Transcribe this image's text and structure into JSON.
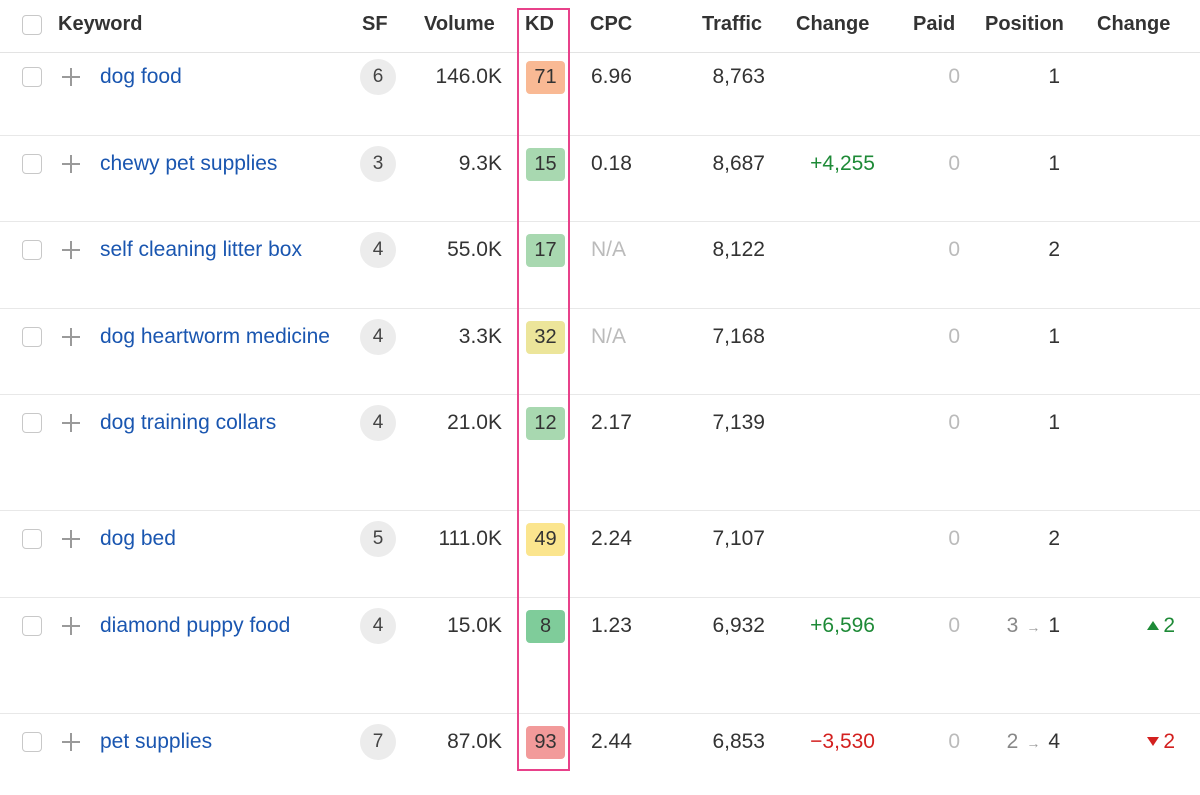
{
  "header": {
    "keyword": "Keyword",
    "sf": "SF",
    "volume": "Volume",
    "kd": "KD",
    "cpc": "CPC",
    "traffic": "Traffic",
    "change": "Change",
    "paid": "Paid",
    "position": "Position",
    "position_change": "Change"
  },
  "rows": [
    {
      "keyword": "dog food",
      "sf": "6",
      "volume": "146.0K",
      "kd": "71",
      "cpc": "6.96",
      "traffic": "8,763",
      "change": "",
      "paid": "0",
      "pos_from": "",
      "pos_to": "1",
      "pos_change": ""
    },
    {
      "keyword": "chewy pet supplies",
      "sf": "3",
      "volume": "9.3K",
      "kd": "15",
      "cpc": "0.18",
      "traffic": "8,687",
      "change": "+4,255",
      "paid": "0",
      "pos_from": "",
      "pos_to": "1",
      "pos_change": ""
    },
    {
      "keyword": "self cleaning litter box",
      "sf": "4",
      "volume": "55.0K",
      "kd": "17",
      "cpc": "N/A",
      "traffic": "8,122",
      "change": "",
      "paid": "0",
      "pos_from": "",
      "pos_to": "2",
      "pos_change": ""
    },
    {
      "keyword": "dog heartworm medicine",
      "sf": "4",
      "volume": "3.3K",
      "kd": "32",
      "cpc": "N/A",
      "traffic": "7,168",
      "change": "",
      "paid": "0",
      "pos_from": "",
      "pos_to": "1",
      "pos_change": ""
    },
    {
      "keyword": "dog training collars",
      "sf": "4",
      "volume": "21.0K",
      "kd": "12",
      "cpc": "2.17",
      "traffic": "7,139",
      "change": "",
      "paid": "0",
      "pos_from": "",
      "pos_to": "1",
      "pos_change": ""
    },
    {
      "keyword": "dog bed",
      "sf": "5",
      "volume": "111.0K",
      "kd": "49",
      "cpc": "2.24",
      "traffic": "7,107",
      "change": "",
      "paid": "0",
      "pos_from": "",
      "pos_to": "2",
      "pos_change": ""
    },
    {
      "keyword": "diamond puppy food",
      "sf": "4",
      "volume": "15.0K",
      "kd": "8",
      "cpc": "1.23",
      "traffic": "6,932",
      "change": "+6,596",
      "paid": "0",
      "pos_from": "3",
      "pos_to": "1",
      "pos_change": "2"
    },
    {
      "keyword": "pet supplies",
      "sf": "7",
      "volume": "87.0K",
      "kd": "93",
      "cpc": "2.44",
      "traffic": "6,853",
      "change": "−3,530",
      "paid": "0",
      "pos_from": "2",
      "pos_to": "4",
      "pos_change": "2"
    }
  ],
  "colors": {
    "kd_71": "#f9b994",
    "kd_15": "#a8d8b0",
    "kd_17": "#a8d8b0",
    "kd_32": "#ece59a",
    "kd_12": "#a8d8b0",
    "kd_49": "#fbe58e",
    "kd_8": "#7fcc9a",
    "kd_93": "#f29a9a",
    "highlight_border": "#e8418a",
    "link": "#1a56b0",
    "positive": "#1e8a37",
    "negative": "#d3201f"
  },
  "icons": {
    "add": "plus-icon",
    "arrow": "arrow-right-icon",
    "up": "triangle-up-icon",
    "down": "triangle-down-icon"
  }
}
